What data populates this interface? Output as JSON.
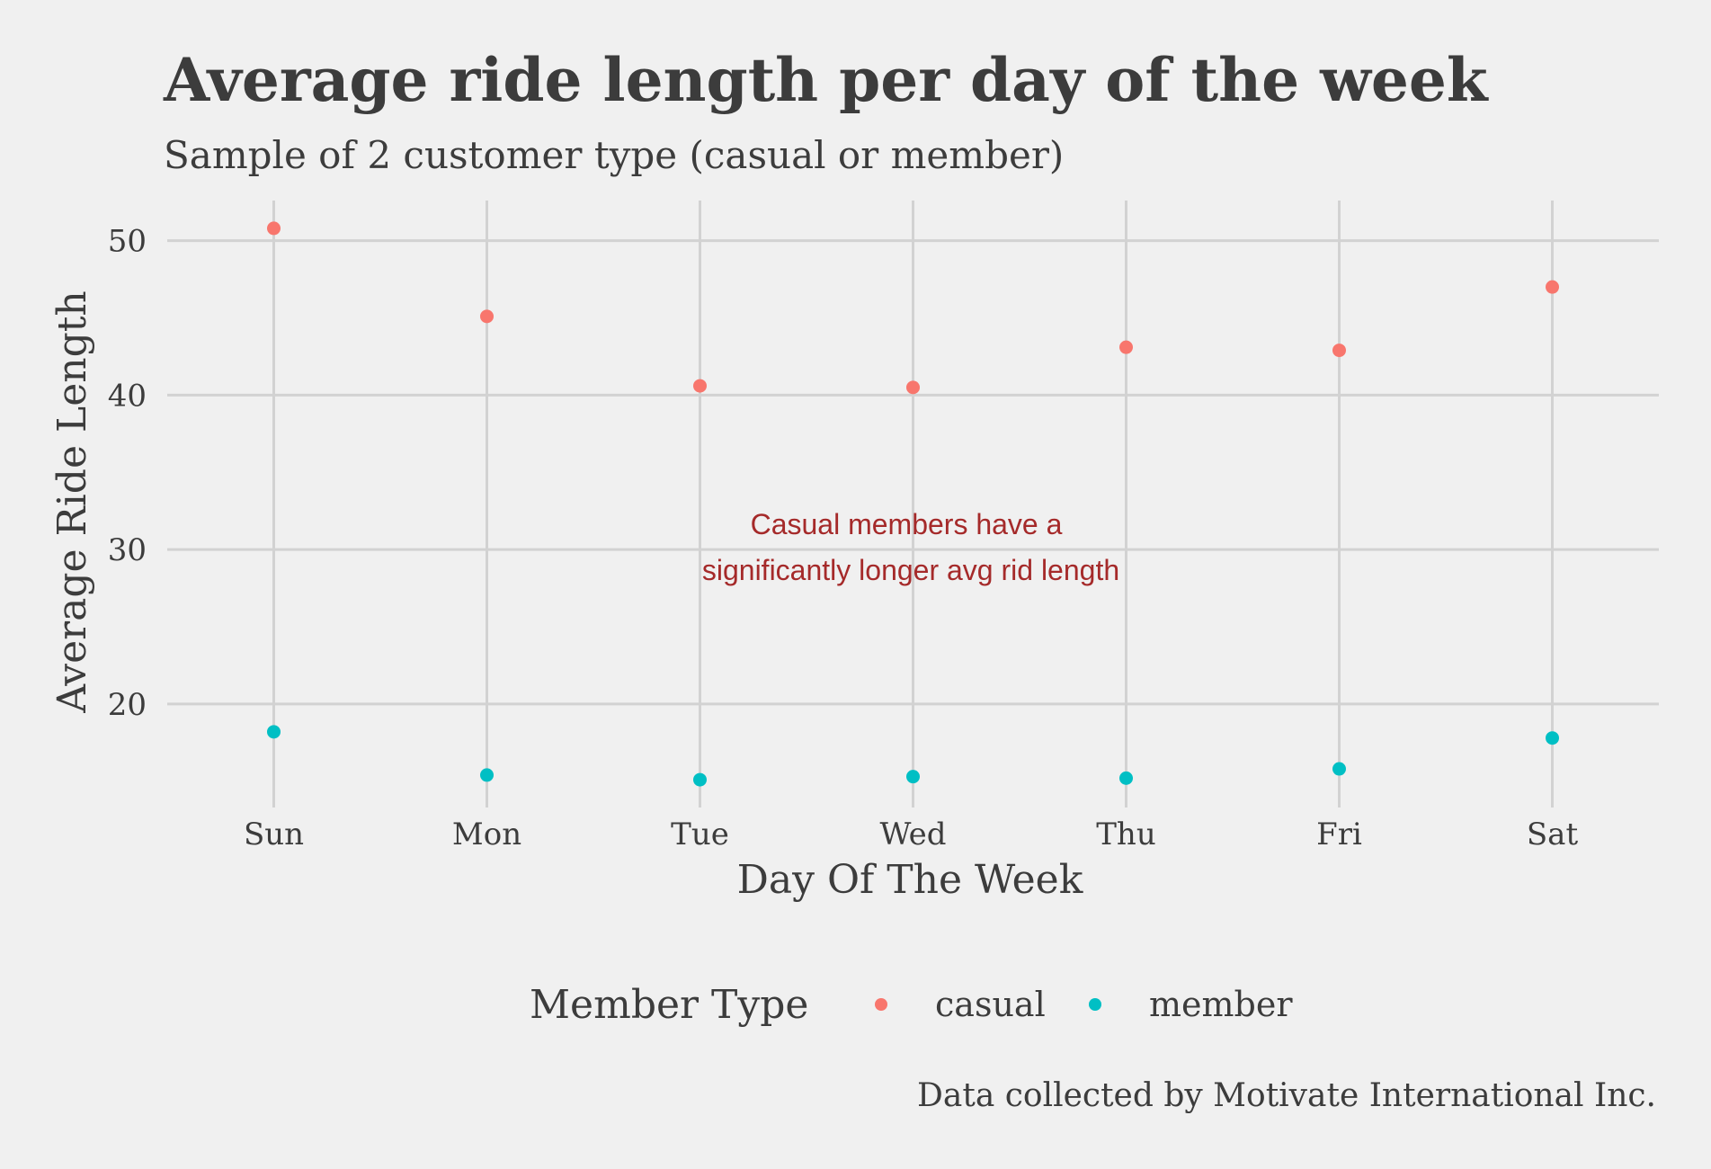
{
  "chart_data": {
    "type": "scatter",
    "title": "Average ride length per day of the week",
    "subtitle": "Sample of 2 customer type (casual or member)",
    "xlabel": "Day Of The Week",
    "ylabel": "Average Ride Length",
    "categories": [
      "Sun",
      "Mon",
      "Tue",
      "Wed",
      "Thu",
      "Fri",
      "Sat"
    ],
    "y_ticks": [
      20,
      30,
      40,
      50
    ],
    "ylim": [
      13.3,
      52.6
    ],
    "grid": true,
    "legend_title": "Member Type",
    "legend_position": "bottom",
    "series": [
      {
        "name": "casual",
        "color": "#f8766d",
        "values": [
          50.8,
          45.1,
          40.6,
          40.5,
          43.1,
          42.9,
          47.0
        ]
      },
      {
        "name": "member",
        "color": "#00bfc4",
        "values": [
          18.2,
          15.4,
          15.1,
          15.3,
          15.2,
          15.8,
          17.8
        ]
      }
    ],
    "annotation": {
      "lines": [
        "Casual members have a",
        "significantly longer avg rid length"
      ],
      "color": "#a52a2a"
    },
    "caption": "Data collected by Motivate International Inc."
  }
}
